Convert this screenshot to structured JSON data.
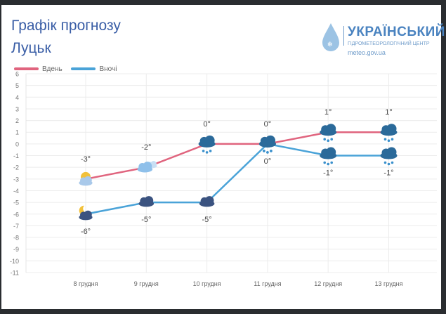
{
  "header": {
    "title": "Графік прогнозу",
    "city": "Луцьк"
  },
  "logo": {
    "name": "УКРАЇНСЬКИЙ",
    "subtitle": "ГІДРОМЕТЕОРОЛОГІЧНИЙ ЦЕНТР",
    "site": "meteo.gov.ua"
  },
  "chart_data": {
    "type": "line",
    "categories": [
      "8 грудня",
      "9 грудня",
      "10 грудня",
      "11 грудня",
      "12 грудня",
      "13 грудня"
    ],
    "series": [
      {
        "name": "Вдень",
        "color": "#e0647e",
        "values": [
          -3,
          -2,
          0,
          0,
          1,
          1
        ],
        "labels": [
          "-3°",
          "-2°",
          "0°",
          "0°",
          "1°",
          "1°"
        ],
        "icons": [
          "sun-cloud",
          "cloud",
          "cloud-snow",
          "cloud-snow",
          "cloud-snow",
          "cloud-snow"
        ]
      },
      {
        "name": "Вночі",
        "color": "#4aa3d8",
        "values": [
          -6,
          -5,
          -5,
          0,
          -1,
          -1
        ],
        "labels": [
          "-6°",
          "-5°",
          "-5°",
          "0°",
          "-1°",
          "-1°"
        ],
        "icons": [
          "moon-cloud",
          "dark-cloud",
          "dark-cloud",
          "cloud-snow",
          "cloud-snow",
          "cloud-snow"
        ]
      }
    ],
    "ylim": [
      -11,
      6
    ],
    "yticks": [
      "6",
      "5",
      "4",
      "3",
      "2",
      "1",
      "0",
      "-1",
      "-2",
      "-3",
      "-4",
      "-5",
      "-6",
      "-7",
      "-8",
      "-9",
      "-10",
      "-11"
    ],
    "grid": true,
    "legend": "top-left"
  }
}
